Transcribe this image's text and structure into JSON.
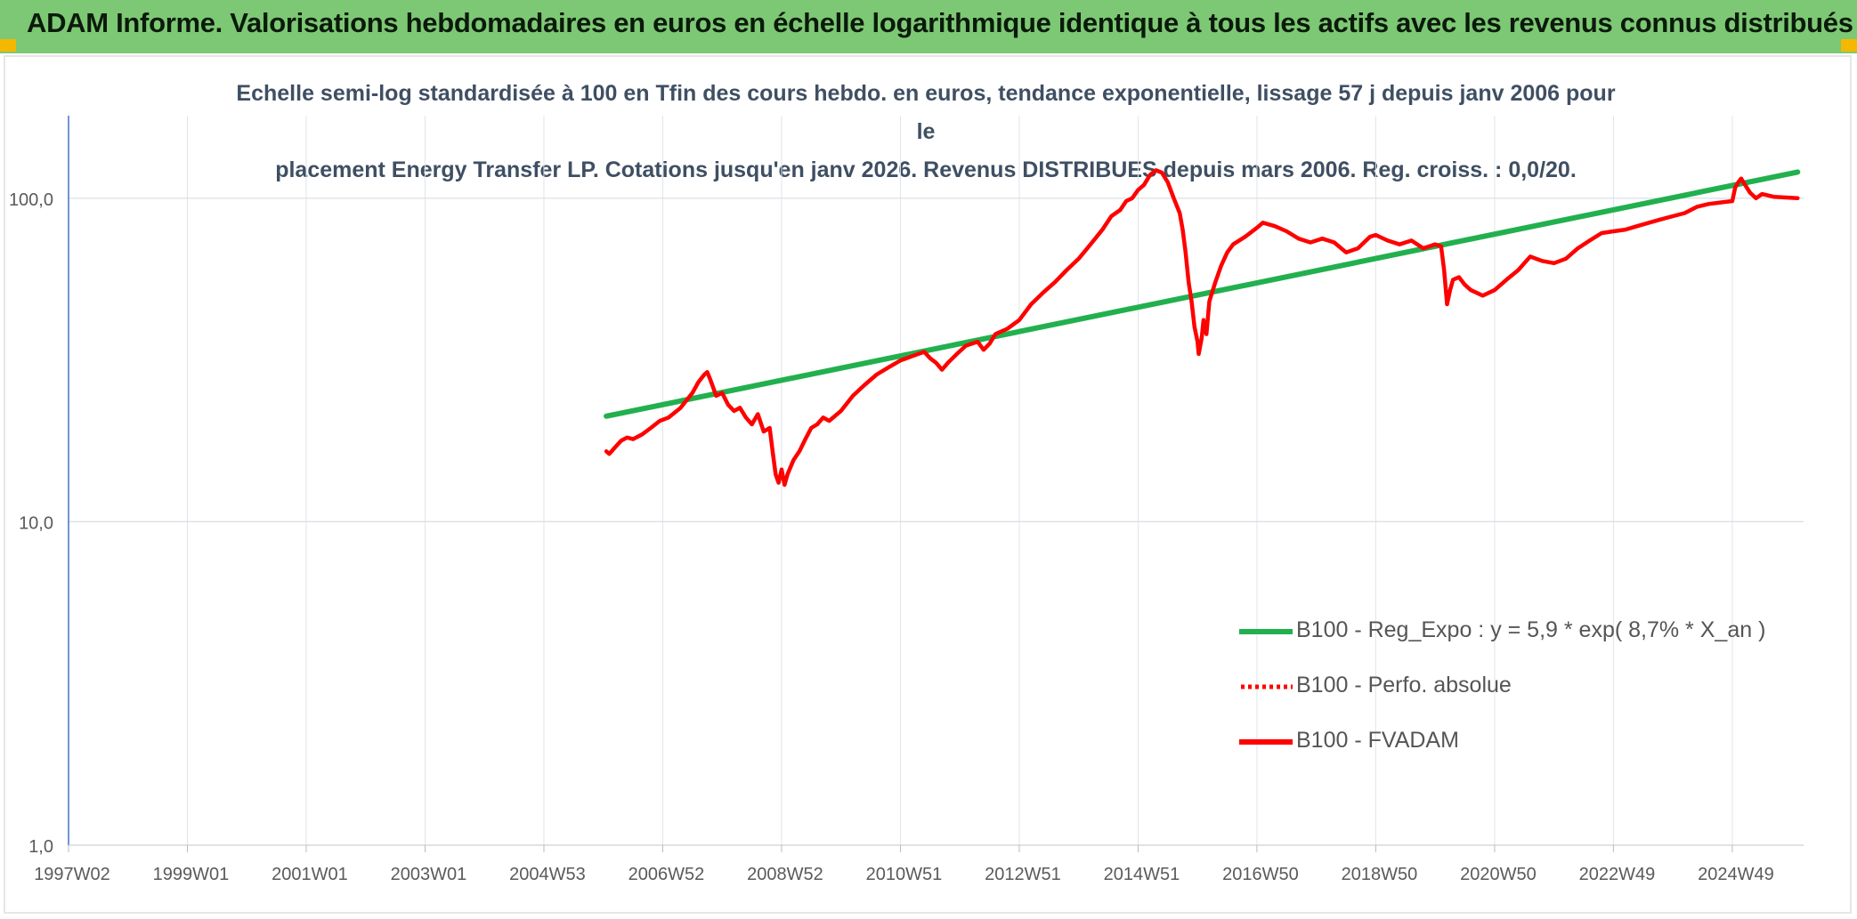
{
  "header": {
    "title": "ADAM Informe. Valorisations hebdomadaires en euros en échelle logarithmique identique à tous les actifs avec les revenus connus distribués"
  },
  "chart_data": {
    "type": "line",
    "title_line1": "Echelle semi-log standardisée à 100 en Tfin des cours hebdo. en euros, tendance exponentielle, lissage 57 j depuis janv 2006 pour le",
    "title_line2": "placement Energy Transfer LP. Cotations jusqu'en janv 2026. Revenus DISTRIBUES depuis mars 2006. Reg. croiss. : 0,0/20.",
    "y_scale": "log",
    "ylim": [
      1,
      180
    ],
    "y_ticks": [
      {
        "value": 1,
        "label": "1,0"
      },
      {
        "value": 10,
        "label": "10,0"
      },
      {
        "value": 100,
        "label": "100,0"
      }
    ],
    "xlim": [
      1997.0,
      2026.2
    ],
    "x_ticks": [
      {
        "x": 1997.0,
        "label": "1997W02"
      },
      {
        "x": 1999.0,
        "label": "1999W01"
      },
      {
        "x": 2001.0,
        "label": "2001W01"
      },
      {
        "x": 2003.0,
        "label": "2003W01"
      },
      {
        "x": 2005.0,
        "label": "2004W53"
      },
      {
        "x": 2007.0,
        "label": "2006W52"
      },
      {
        "x": 2009.0,
        "label": "2008W52"
      },
      {
        "x": 2011.0,
        "label": "2010W51"
      },
      {
        "x": 2013.0,
        "label": "2012W51"
      },
      {
        "x": 2015.0,
        "label": "2014W51"
      },
      {
        "x": 2017.0,
        "label": "2016W50"
      },
      {
        "x": 2019.0,
        "label": "2018W50"
      },
      {
        "x": 2021.0,
        "label": "2020W50"
      },
      {
        "x": 2023.0,
        "label": "2022W49"
      },
      {
        "x": 2025.0,
        "label": "2024W49"
      }
    ],
    "grid": true,
    "legend_position": "right",
    "series": [
      {
        "name": "B100 - Reg_Expo : y = 5,9 * exp( 8,7% *  X_an )",
        "color": "#22b04f",
        "style": "solid",
        "points": [
          [
            2006.05,
            21.2
          ],
          [
            2026.1,
            120.5
          ]
        ]
      },
      {
        "name": "B100 - Perfo. absolue",
        "color": "#ff0000",
        "style": "dotted",
        "points": []
      },
      {
        "name": "B100 - FVADAM",
        "color": "#ff0000",
        "style": "solid",
        "points": [
          [
            2006.05,
            16.5
          ],
          [
            2006.1,
            16.2
          ],
          [
            2006.2,
            17.0
          ],
          [
            2006.3,
            17.8
          ],
          [
            2006.4,
            18.2
          ],
          [
            2006.5,
            18.0
          ],
          [
            2006.65,
            18.6
          ],
          [
            2006.8,
            19.5
          ],
          [
            2006.95,
            20.5
          ],
          [
            2007.1,
            21.0
          ],
          [
            2007.3,
            22.5
          ],
          [
            2007.5,
            25.0
          ],
          [
            2007.6,
            27.0
          ],
          [
            2007.7,
            28.5
          ],
          [
            2007.75,
            29.0
          ],
          [
            2007.8,
            27.5
          ],
          [
            2007.9,
            24.5
          ],
          [
            2008.0,
            25.0
          ],
          [
            2008.1,
            23.0
          ],
          [
            2008.2,
            22.0
          ],
          [
            2008.3,
            22.5
          ],
          [
            2008.4,
            21.0
          ],
          [
            2008.5,
            20.0
          ],
          [
            2008.6,
            21.5
          ],
          [
            2008.7,
            19.0
          ],
          [
            2008.8,
            19.5
          ],
          [
            2008.85,
            16.5
          ],
          [
            2008.9,
            14.0
          ],
          [
            2008.95,
            13.2
          ],
          [
            2009.0,
            14.5
          ],
          [
            2009.05,
            13.0
          ],
          [
            2009.1,
            14.0
          ],
          [
            2009.2,
            15.5
          ],
          [
            2009.3,
            16.5
          ],
          [
            2009.4,
            18.0
          ],
          [
            2009.5,
            19.5
          ],
          [
            2009.6,
            20.0
          ],
          [
            2009.7,
            21.0
          ],
          [
            2009.8,
            20.5
          ],
          [
            2010.0,
            22.0
          ],
          [
            2010.2,
            24.5
          ],
          [
            2010.4,
            26.5
          ],
          [
            2010.6,
            28.5
          ],
          [
            2010.8,
            30.0
          ],
          [
            2011.0,
            31.5
          ],
          [
            2011.2,
            32.5
          ],
          [
            2011.4,
            33.5
          ],
          [
            2011.5,
            32.0
          ],
          [
            2011.6,
            31.0
          ],
          [
            2011.7,
            29.5
          ],
          [
            2011.8,
            31.0
          ],
          [
            2011.95,
            33.0
          ],
          [
            2012.1,
            35.0
          ],
          [
            2012.3,
            36.0
          ],
          [
            2012.4,
            34.0
          ],
          [
            2012.5,
            35.5
          ],
          [
            2012.6,
            38.0
          ],
          [
            2012.8,
            39.5
          ],
          [
            2013.0,
            42.0
          ],
          [
            2013.2,
            47.0
          ],
          [
            2013.4,
            51.0
          ],
          [
            2013.6,
            55.0
          ],
          [
            2013.8,
            60.0
          ],
          [
            2014.0,
            65.0
          ],
          [
            2014.2,
            72.0
          ],
          [
            2014.4,
            80.0
          ],
          [
            2014.55,
            88.0
          ],
          [
            2014.7,
            92.0
          ],
          [
            2014.8,
            98.0
          ],
          [
            2014.9,
            100.0
          ],
          [
            2015.0,
            106.0
          ],
          [
            2015.1,
            110.0
          ],
          [
            2015.2,
            118.0
          ],
          [
            2015.3,
            122.0
          ],
          [
            2015.4,
            120.0
          ],
          [
            2015.5,
            112.0
          ],
          [
            2015.6,
            100.0
          ],
          [
            2015.7,
            90.0
          ],
          [
            2015.75,
            80.0
          ],
          [
            2015.8,
            68.0
          ],
          [
            2015.85,
            55.0
          ],
          [
            2015.9,
            48.0
          ],
          [
            2015.95,
            40.0
          ],
          [
            2016.0,
            36.0
          ],
          [
            2016.02,
            33.0
          ],
          [
            2016.07,
            37.0
          ],
          [
            2016.1,
            42.0
          ],
          [
            2016.15,
            38.0
          ],
          [
            2016.2,
            48.0
          ],
          [
            2016.3,
            55.0
          ],
          [
            2016.4,
            62.0
          ],
          [
            2016.5,
            68.0
          ],
          [
            2016.6,
            72.0
          ],
          [
            2016.8,
            76.0
          ],
          [
            2017.0,
            81.0
          ],
          [
            2017.1,
            84.0
          ],
          [
            2017.3,
            82.0
          ],
          [
            2017.5,
            79.0
          ],
          [
            2017.7,
            75.0
          ],
          [
            2017.9,
            73.0
          ],
          [
            2018.1,
            75.0
          ],
          [
            2018.3,
            73.0
          ],
          [
            2018.5,
            68.0
          ],
          [
            2018.7,
            70.0
          ],
          [
            2018.9,
            76.0
          ],
          [
            2019.0,
            77.0
          ],
          [
            2019.2,
            74.0
          ],
          [
            2019.4,
            72.0
          ],
          [
            2019.6,
            74.0
          ],
          [
            2019.8,
            70.0
          ],
          [
            2020.0,
            72.0
          ],
          [
            2020.1,
            71.0
          ],
          [
            2020.15,
            60.0
          ],
          [
            2020.2,
            47.0
          ],
          [
            2020.25,
            52.0
          ],
          [
            2020.3,
            56.0
          ],
          [
            2020.4,
            57.0
          ],
          [
            2020.5,
            54.0
          ],
          [
            2020.6,
            52.0
          ],
          [
            2020.8,
            50.0
          ],
          [
            2021.0,
            52.0
          ],
          [
            2021.2,
            56.0
          ],
          [
            2021.4,
            60.0
          ],
          [
            2021.5,
            63.0
          ],
          [
            2021.6,
            66.0
          ],
          [
            2021.8,
            64.0
          ],
          [
            2022.0,
            63.0
          ],
          [
            2022.2,
            65.0
          ],
          [
            2022.4,
            70.0
          ],
          [
            2022.6,
            74.0
          ],
          [
            2022.8,
            78.0
          ],
          [
            2023.0,
            79.0
          ],
          [
            2023.2,
            80.0
          ],
          [
            2023.4,
            82.0
          ],
          [
            2023.6,
            84.0
          ],
          [
            2023.8,
            86.0
          ],
          [
            2024.0,
            88.0
          ],
          [
            2024.2,
            90.0
          ],
          [
            2024.4,
            94.0
          ],
          [
            2024.6,
            96.0
          ],
          [
            2024.8,
            97.0
          ],
          [
            2025.0,
            98.0
          ],
          [
            2025.05,
            108.0
          ],
          [
            2025.1,
            112.0
          ],
          [
            2025.15,
            115.0
          ],
          [
            2025.2,
            111.0
          ],
          [
            2025.3,
            104.0
          ],
          [
            2025.4,
            100.0
          ],
          [
            2025.5,
            103.0
          ],
          [
            2025.7,
            101.0
          ],
          [
            2025.9,
            100.5
          ],
          [
            2026.1,
            100.0
          ]
        ]
      }
    ]
  },
  "legend": [
    {
      "label": "B100 - Reg_Expo : y = 5,9 * exp( 8,7% *  X_an )",
      "color": "#22b04f",
      "style": "solid"
    },
    {
      "label": "B100 - Perfo. absolue",
      "color": "#ff0000",
      "style": "dotted"
    },
    {
      "label": "B100 - FVADAM",
      "color": "#ff0000",
      "style": "solid"
    }
  ]
}
